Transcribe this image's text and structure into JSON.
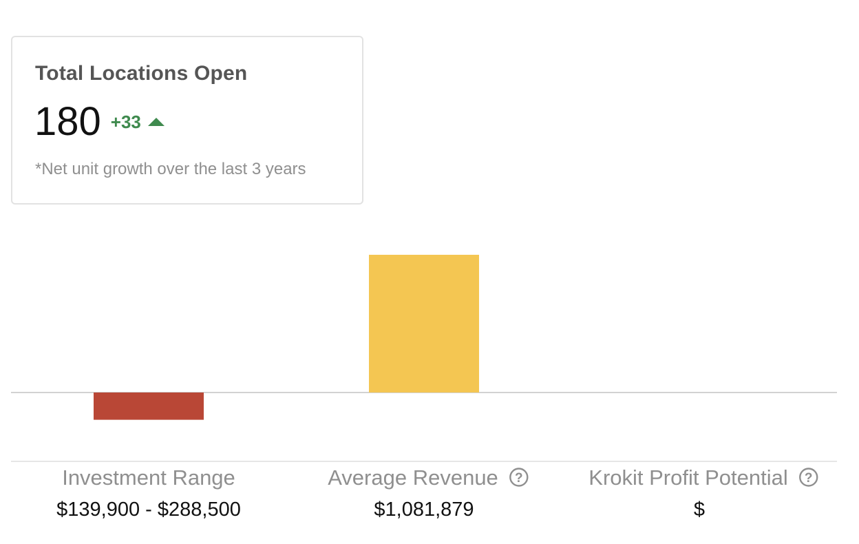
{
  "summary_card": {
    "title": "Total Locations Open",
    "value": "180",
    "delta": "+33",
    "delta_icon": "triangle-up-icon",
    "note": "*Net unit growth over the last 3 years",
    "delta_color": "#3f8a4e"
  },
  "chart_data": {
    "type": "bar",
    "categories": [
      "Investment Range",
      "Average Revenue",
      "Krokit Profit Potential"
    ],
    "display_values": [
      "$139,900 - $288,500",
      "$1,081,879",
      "$"
    ],
    "values": [
      -214200,
      1081879,
      null
    ],
    "ylim": [
      -541000,
      1081879
    ],
    "bar_colors": [
      "#b94736",
      "#f4c652",
      "#f4c652"
    ],
    "help_icons": [
      false,
      true,
      true
    ],
    "help_icon_name": "question-circle-icon",
    "grid": false,
    "legend": "none"
  }
}
